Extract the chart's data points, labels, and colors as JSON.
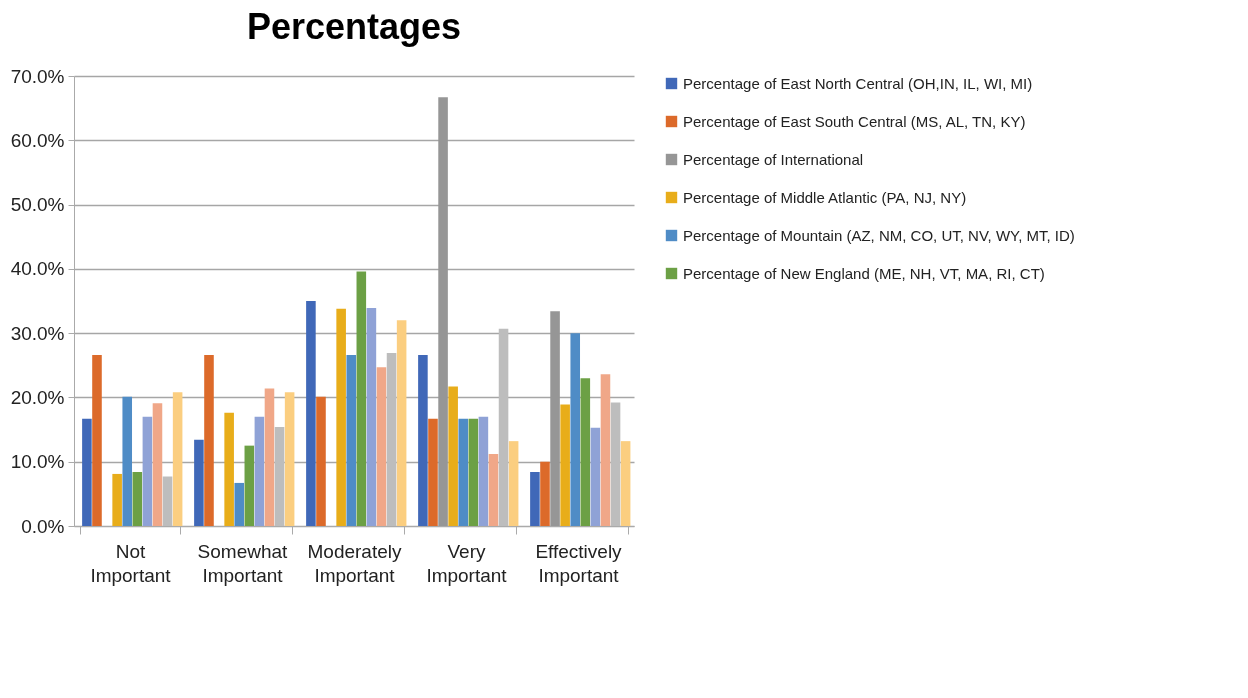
{
  "chart_data": {
    "type": "bar",
    "title": "Percentages",
    "categories": [
      "Not Important",
      "Somewhat Important",
      "Moderately Important",
      "Very Important",
      "Effectively Important"
    ],
    "ylim": [
      0,
      70
    ],
    "yticks": [
      {
        "value": 0,
        "label": "0.0%"
      },
      {
        "value": 10,
        "label": "10.0%"
      },
      {
        "value": 20,
        "label": "20.0%"
      },
      {
        "value": 30,
        "label": "30.0%"
      },
      {
        "value": 40,
        "label": "40.0%"
      },
      {
        "value": 50,
        "label": "50.0%"
      },
      {
        "value": 60,
        "label": "60.0%"
      },
      {
        "value": 70,
        "label": "70.0%"
      }
    ],
    "grid": "y",
    "legend": "right",
    "series": [
      {
        "name": "Percentage of East North Central (OH,IN, IL, WI, MI)",
        "color": "#4068b8",
        "values": [
          16.7,
          13.4,
          35.0,
          26.6,
          8.4
        ]
      },
      {
        "name": "Percentage of East South Central (MS, AL, TN, KY)",
        "color": "#dc6a2a",
        "values": [
          26.6,
          26.6,
          20.1,
          16.7,
          10.0
        ]
      },
      {
        "name": "Percentage of International",
        "color": "#969696",
        "values": [
          0,
          0,
          0,
          66.7,
          33.4
        ]
      },
      {
        "name": "Percentage of Middle Atlantic (PA, NJ, NY)",
        "color": "#e8ad1a",
        "values": [
          8.1,
          17.6,
          33.8,
          21.7,
          18.9
        ]
      },
      {
        "name": "Percentage of Mountain (AZ, NM, CO, UT, NV, WY, MT, ID)",
        "color": "#4f8cc6",
        "values": [
          20.1,
          6.7,
          26.6,
          16.7,
          30.0
        ]
      },
      {
        "name": "Percentage of New England (ME, NH, VT, MA, RI, CT)",
        "color": "#6ca045",
        "values": [
          8.4,
          12.5,
          39.6,
          16.7,
          23.0
        ]
      },
      {
        "color": "#8fa2d6",
        "values": [
          17.0,
          17.0,
          33.9,
          17.0,
          15.3
        ]
      },
      {
        "color": "#f0a788",
        "values": [
          19.1,
          21.4,
          24.7,
          11.2,
          23.6
        ]
      },
      {
        "color": "#bdbdbd",
        "values": [
          7.7,
          15.4,
          26.9,
          30.7,
          19.2
        ]
      },
      {
        "color": "#fbce80",
        "values": [
          20.8,
          20.8,
          32.0,
          13.2,
          13.2
        ]
      }
    ]
  }
}
